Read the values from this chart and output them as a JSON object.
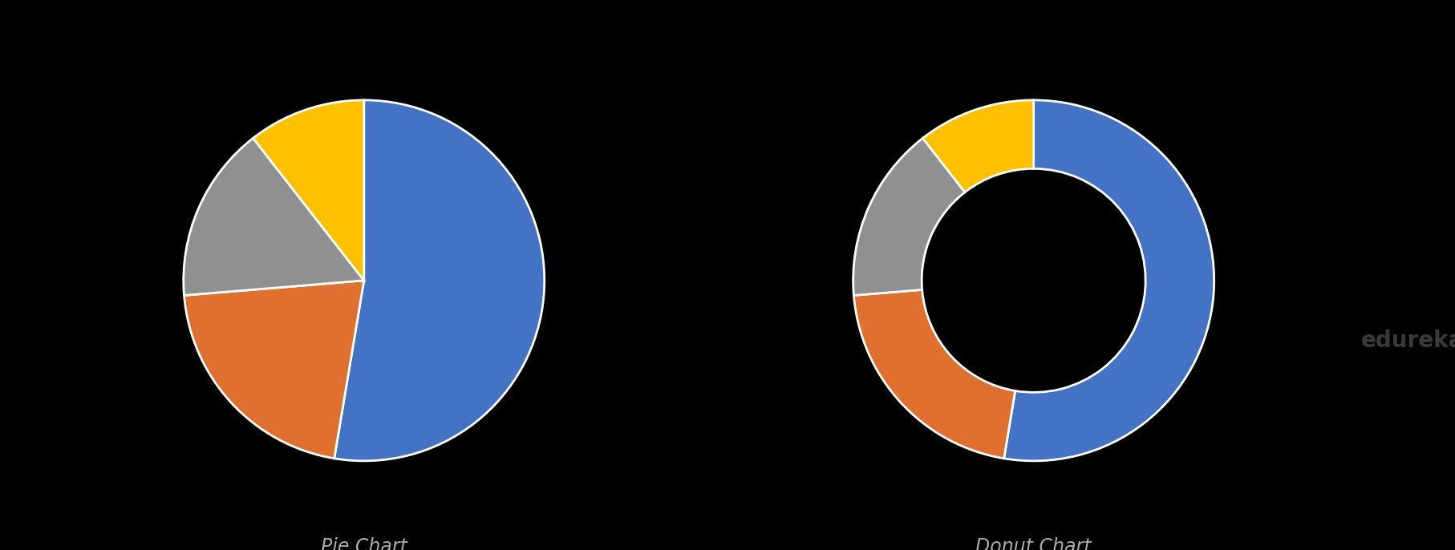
{
  "values": [
    50,
    20,
    15,
    10
  ],
  "colors": [
    "#4472C4",
    "#E07030",
    "#909090",
    "#FFC000"
  ],
  "startangle": 90,
  "pie_label": "Pie Chart",
  "donut_label": "Donut Chart",
  "edureka_text": "edureka!",
  "edureka_color": "#3a3a3a",
  "background_color": "#000000",
  "label_color": "#AAAAAA",
  "wedge_linewidth": 2,
  "wedge_edgecolor": "#ffffff",
  "label_fontsize": 17,
  "edureka_fontsize": 20,
  "donut_width": 0.38
}
